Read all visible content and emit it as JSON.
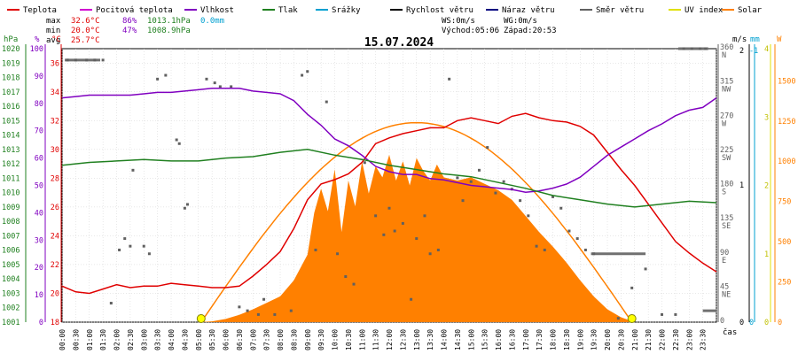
{
  "chart_data": {
    "type": "line",
    "title": "15.07.2024",
    "legend": [
      {
        "label": "Teplota",
        "color": "#e00000"
      },
      {
        "label": "Pocitová teplota",
        "color": "#d000d0"
      },
      {
        "label": "Vlhkost",
        "color": "#8000c0"
      },
      {
        "label": "Tlak",
        "color": "#208020"
      },
      {
        "label": "Srážky",
        "color": "#00a0d0"
      },
      {
        "label": "Rychlost větru",
        "color": "#000000"
      },
      {
        "label": "Náraz větru",
        "color": "#000080"
      },
      {
        "label": "Směr větru",
        "color": "#606060"
      },
      {
        "label": "UV index",
        "color": "#e0e000"
      },
      {
        "label": "Solar",
        "color": "#ff8000"
      }
    ],
    "stats": [
      {
        "label": "max",
        "temp": "32.6°C",
        "hum": "86%",
        "press": "1013.1hPa",
        "rain": "0.0mm"
      },
      {
        "label": "min",
        "temp": "20.0°C",
        "hum": "47%",
        "press": "1008.9hPa",
        "rain": ""
      },
      {
        "label": "avg",
        "temp": "25.7°C",
        "hum": "",
        "press": "",
        "rain": ""
      }
    ],
    "wind_info": {
      "ws": "WS:0m/s",
      "wg": "WG:0m/s",
      "sunrise": "Východ:05:06",
      "sunset": "Západ:20:53"
    },
    "axes": {
      "hpa": {
        "unit": "hPa",
        "min": 1001,
        "max": 1020,
        "ticks": [
          "1020",
          "1019",
          "1018",
          "1017",
          "1016",
          "1015",
          "1014",
          "1013",
          "1012",
          "1011",
          "1010",
          "1009",
          "1008",
          "1007",
          "1006",
          "1005",
          "1004",
          "1003",
          "1002",
          "1001"
        ]
      },
      "pct": {
        "unit": "%",
        "min": 0,
        "max": 100,
        "ticks": [
          "100",
          "90",
          "80",
          "70",
          "60",
          "50",
          "40",
          "30",
          "20",
          "10",
          "0"
        ]
      },
      "temp": {
        "unit": "°C",
        "min": 18,
        "max": 37,
        "ticks": [
          "36",
          "34",
          "32",
          "30",
          "28",
          "26",
          "24",
          "22",
          "20",
          "18"
        ]
      },
      "dir": {
        "min": 0,
        "max": 360,
        "ticks": [
          "360 N",
          "315 NW",
          "270 W",
          "225 SW",
          "180 S",
          "135 SE",
          "90 E",
          "45 NE",
          "0"
        ]
      },
      "ms": {
        "unit": "m/s",
        "ticks": [
          "2",
          "1",
          "0"
        ]
      },
      "mm": {
        "unit": "mm",
        "ticks": [
          "-1",
          "0"
        ]
      },
      "uv": {
        "ticks": [
          "4",
          "3",
          "2",
          "1",
          "0"
        ]
      },
      "solar": {
        "unit": "W",
        "min": 0,
        "max": 1500,
        "ticks": [
          "1500",
          "1250",
          "1000",
          "750",
          "500",
          "250",
          "0"
        ]
      },
      "x_label": "čas"
    },
    "time_labels": [
      "00:00",
      "00:30",
      "01:00",
      "01:30",
      "02:00",
      "02:30",
      "03:00",
      "03:30",
      "04:00",
      "04:30",
      "05:00",
      "05:30",
      "06:00",
      "06:30",
      "07:00",
      "07:30",
      "08:00",
      "08:30",
      "09:00",
      "09:30",
      "10:00",
      "10:30",
      "11:00",
      "11:30",
      "12:00",
      "12:30",
      "13:00",
      "13:30",
      "14:00",
      "14:30",
      "15:00",
      "15:30",
      "16:00",
      "16:30",
      "17:00",
      "17:30",
      "18:00",
      "18:30",
      "19:00",
      "19:30",
      "20:00",
      "20:30",
      "21:00",
      "21:30",
      "22:00",
      "22:30",
      "23:00",
      "23:30"
    ],
    "series": [
      {
        "name": "Teplota",
        "axis": "temp",
        "color": "#e00000",
        "x": [
          0,
          0.5,
          1,
          1.5,
          2,
          2.5,
          3,
          3.5,
          4,
          4.5,
          5,
          5.5,
          6,
          6.5,
          7,
          7.5,
          8,
          8.5,
          9,
          9.5,
          10,
          10.5,
          11,
          11.5,
          12,
          12.5,
          13,
          13.5,
          14,
          14.5,
          15,
          15.5,
          16,
          16.5,
          17,
          17.5,
          18,
          18.5,
          19,
          19.5,
          20,
          20.5,
          21,
          21.5,
          22,
          22.5,
          23,
          23.5,
          24
        ],
        "y": [
          20.5,
          20.1,
          20.0,
          20.3,
          20.6,
          20.4,
          20.5,
          20.5,
          20.7,
          20.6,
          20.5,
          20.4,
          20.4,
          20.5,
          21.2,
          22.0,
          22.9,
          24.5,
          26.5,
          27.6,
          27.9,
          28.3,
          29.1,
          30.4,
          30.8,
          31.1,
          31.3,
          31.5,
          31.5,
          32.0,
          32.2,
          32.0,
          31.8,
          32.3,
          32.5,
          32.2,
          32.0,
          31.9,
          31.6,
          31.0,
          29.8,
          28.6,
          27.5,
          26.2,
          24.9,
          23.6,
          22.8,
          22.1,
          21.5
        ]
      },
      {
        "name": "Vlhkost",
        "axis": "pct",
        "color": "#8000c0",
        "x": [
          0,
          0.5,
          1,
          1.5,
          2,
          2.5,
          3,
          3.5,
          4,
          4.5,
          5,
          5.5,
          6,
          6.5,
          7,
          7.5,
          8,
          8.5,
          9,
          9.5,
          10,
          10.5,
          11,
          11.5,
          12,
          12.5,
          13,
          13.5,
          14,
          14.5,
          15,
          15.5,
          16,
          16.5,
          17,
          17.5,
          18,
          18.5,
          19,
          19.5,
          20,
          20.5,
          21,
          21.5,
          22,
          22.5,
          23,
          23.5,
          24
        ],
        "y": [
          82,
          82.5,
          83,
          83,
          83,
          83,
          83.5,
          84,
          84,
          84.5,
          85,
          85.5,
          85.5,
          85.5,
          84.5,
          84,
          83.5,
          81,
          76,
          72,
          67,
          64.5,
          61,
          57,
          55,
          54,
          54,
          52.5,
          52,
          51,
          50,
          49.5,
          49,
          48.5,
          47.5,
          48,
          49,
          50.5,
          53,
          57,
          61,
          64,
          67,
          70,
          72.5,
          75.5,
          77.5,
          78.5,
          82
        ]
      },
      {
        "name": "Tlak",
        "axis": "hpa",
        "color": "#208020",
        "x": [
          0,
          1,
          2,
          3,
          4,
          5,
          6,
          7,
          8,
          9,
          10,
          11,
          12,
          13,
          14,
          15,
          16,
          17,
          18,
          19,
          20,
          21,
          22,
          23,
          24
        ],
        "y": [
          1011.9,
          1012.1,
          1012.2,
          1012.3,
          1012.2,
          1012.2,
          1012.4,
          1012.5,
          1012.8,
          1013.0,
          1012.6,
          1012.3,
          1011.9,
          1011.6,
          1011.3,
          1011.1,
          1010.7,
          1010.3,
          1009.8,
          1009.5,
          1009.2,
          1009.0,
          1009.2,
          1009.4,
          1009.3
        ]
      },
      {
        "name": "Solar",
        "axis": "solar",
        "color": "#ff8000",
        "fill": true,
        "x": [
          0,
          5,
          5.5,
          6,
          6.5,
          7,
          7.5,
          8,
          8.5,
          9,
          9.25,
          9.5,
          9.75,
          10,
          10.25,
          10.5,
          10.75,
          11,
          11.25,
          11.5,
          11.75,
          12,
          12.25,
          12.5,
          12.75,
          13,
          13.25,
          13.5,
          13.75,
          14,
          14.5,
          15,
          15.5,
          16,
          16.5,
          17,
          17.5,
          18,
          18.5,
          19,
          19.5,
          20,
          20.5,
          21,
          24
        ],
        "y": [
          0,
          0,
          5,
          20,
          45,
          80,
          120,
          160,
          260,
          420,
          680,
          830,
          690,
          950,
          560,
          880,
          720,
          1000,
          800,
          970,
          900,
          1040,
          880,
          1000,
          850,
          1020,
          940,
          880,
          980,
          900,
          880,
          900,
          860,
          820,
          760,
          660,
          560,
          470,
          370,
          260,
          160,
          80,
          30,
          0,
          0
        ]
      },
      {
        "name": "Solar (theoretical)",
        "axis": "solar",
        "color": "#ff8000",
        "curve": true,
        "peak": 1240,
        "from": 5.1,
        "to": 20.9
      }
    ],
    "wind_direction_points": [
      [
        0.2,
        345
      ],
      [
        0.5,
        345
      ],
      [
        0.9,
        345
      ],
      [
        1.2,
        345
      ],
      [
        1.5,
        345
      ],
      [
        1.8,
        25
      ],
      [
        2.1,
        95
      ],
      [
        2.3,
        110
      ],
      [
        2.5,
        100
      ],
      [
        2.6,
        200
      ],
      [
        3.0,
        100
      ],
      [
        3.2,
        90
      ],
      [
        3.5,
        320
      ],
      [
        3.8,
        325
      ],
      [
        4.2,
        240
      ],
      [
        4.3,
        235
      ],
      [
        4.5,
        150
      ],
      [
        4.6,
        155
      ],
      [
        5.3,
        320
      ],
      [
        5.6,
        315
      ],
      [
        5.8,
        310
      ],
      [
        6.2,
        310
      ],
      [
        6.5,
        20
      ],
      [
        6.8,
        15
      ],
      [
        7.2,
        10
      ],
      [
        7.4,
        30
      ],
      [
        7.8,
        10
      ],
      [
        8.4,
        15
      ],
      [
        8.8,
        325
      ],
      [
        9.0,
        330
      ],
      [
        9.3,
        95
      ],
      [
        9.7,
        290
      ],
      [
        10.1,
        90
      ],
      [
        10.4,
        60
      ],
      [
        10.7,
        50
      ],
      [
        11.1,
        210
      ],
      [
        11.5,
        140
      ],
      [
        11.8,
        115
      ],
      [
        12.0,
        150
      ],
      [
        12.2,
        120
      ],
      [
        12.5,
        130
      ],
      [
        12.8,
        30
      ],
      [
        13.0,
        110
      ],
      [
        13.3,
        140
      ],
      [
        13.5,
        90
      ],
      [
        13.8,
        95
      ],
      [
        14.2,
        320
      ],
      [
        14.5,
        190
      ],
      [
        14.7,
        160
      ],
      [
        15.0,
        185
      ],
      [
        15.3,
        200
      ],
      [
        15.6,
        230
      ],
      [
        15.9,
        170
      ],
      [
        16.2,
        185
      ],
      [
        16.5,
        175
      ],
      [
        16.8,
        160
      ],
      [
        17.1,
        140
      ],
      [
        17.4,
        100
      ],
      [
        17.7,
        95
      ],
      [
        18.0,
        165
      ],
      [
        18.3,
        150
      ],
      [
        18.6,
        120
      ],
      [
        18.9,
        110
      ],
      [
        19.2,
        95
      ],
      [
        19.5,
        90
      ],
      [
        20.4,
        5
      ],
      [
        20.9,
        45
      ],
      [
        21.4,
        70
      ],
      [
        22.0,
        10
      ],
      [
        22.5,
        10
      ],
      [
        22.8,
        360
      ],
      [
        23.1,
        360
      ],
      [
        23.4,
        360
      ],
      [
        23.6,
        360
      ]
    ],
    "wind_direction_segments": [
      [
        0.1,
        345,
        1.4,
        345
      ],
      [
        19.4,
        90,
        21.4,
        90
      ],
      [
        22.6,
        360,
        23.7,
        360
      ],
      [
        23.5,
        15,
        24,
        15
      ]
    ],
    "sun_markers": [
      {
        "time": 5.1
      },
      {
        "time": 20.9
      }
    ]
  }
}
